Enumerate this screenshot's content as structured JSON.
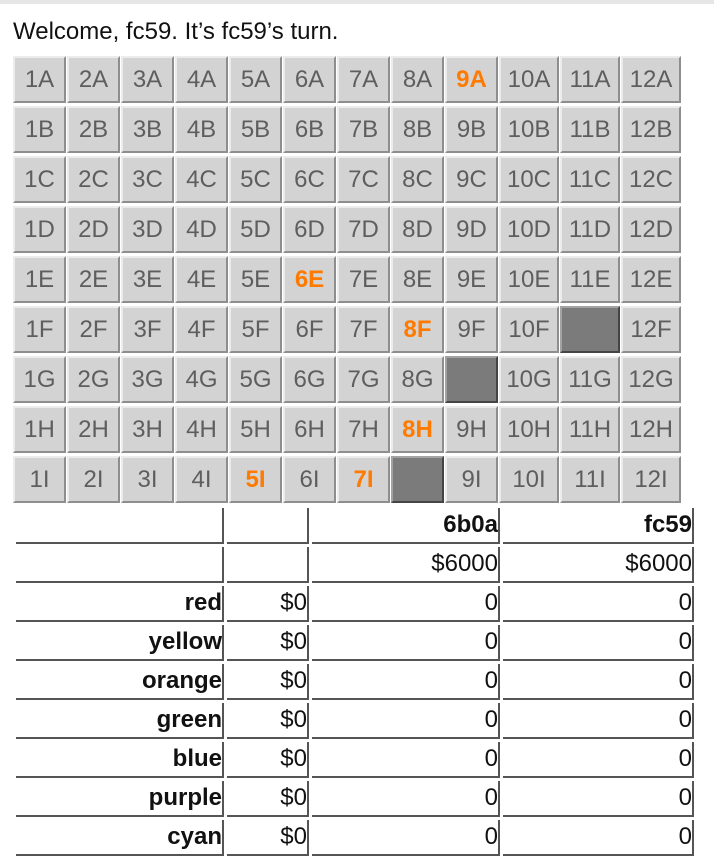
{
  "welcome": "Welcome, fc59. It’s fc59’s turn.",
  "board": {
    "rows": [
      [
        "1A",
        "2A",
        "3A",
        "4A",
        "5A",
        "6A",
        "7A",
        "8A",
        "9A",
        "10A",
        "11A",
        "12A"
      ],
      [
        "1B",
        "2B",
        "3B",
        "4B",
        "5B",
        "6B",
        "7B",
        "8B",
        "9B",
        "10B",
        "11B",
        "12B"
      ],
      [
        "1C",
        "2C",
        "3C",
        "4C",
        "5C",
        "6C",
        "7C",
        "8C",
        "9C",
        "10C",
        "11C",
        "12C"
      ],
      [
        "1D",
        "2D",
        "3D",
        "4D",
        "5D",
        "6D",
        "7D",
        "8D",
        "9D",
        "10D",
        "11D",
        "12D"
      ],
      [
        "1E",
        "2E",
        "3E",
        "4E",
        "5E",
        "6E",
        "7E",
        "8E",
        "9E",
        "10E",
        "11E",
        "12E"
      ],
      [
        "1F",
        "2F",
        "3F",
        "4F",
        "5F",
        "6F",
        "7F",
        "8F",
        "9F",
        "10F",
        "",
        "12F"
      ],
      [
        "1G",
        "2G",
        "3G",
        "4G",
        "5G",
        "6G",
        "7G",
        "8G",
        "",
        "10G",
        "11G",
        "12G"
      ],
      [
        "1H",
        "2H",
        "3H",
        "4H",
        "5H",
        "6H",
        "7H",
        "8H",
        "9H",
        "10H",
        "11H",
        "12H"
      ],
      [
        "1I",
        "2I",
        "3I",
        "4I",
        "5I",
        "6I",
        "7I",
        "",
        "9I",
        "10I",
        "11I",
        "12I"
      ]
    ],
    "highlighted": [
      "9A",
      "6E",
      "8F",
      "8H",
      "5I",
      "7I"
    ],
    "highlight_color": "#ff7a00",
    "filled_color": "#7b7b7b"
  },
  "stats": {
    "players": [
      "6b0a",
      "fc59"
    ],
    "cash": [
      "$6000",
      "$6000"
    ],
    "chains": [
      {
        "name": "red",
        "price": "$0",
        "holdings": [
          "0",
          "0"
        ]
      },
      {
        "name": "yellow",
        "price": "$0",
        "holdings": [
          "0",
          "0"
        ]
      },
      {
        "name": "orange",
        "price": "$0",
        "holdings": [
          "0",
          "0"
        ]
      },
      {
        "name": "green",
        "price": "$0",
        "holdings": [
          "0",
          "0"
        ]
      },
      {
        "name": "blue",
        "price": "$0",
        "holdings": [
          "0",
          "0"
        ]
      },
      {
        "name": "purple",
        "price": "$0",
        "holdings": [
          "0",
          "0"
        ]
      },
      {
        "name": "cyan",
        "price": "$0",
        "holdings": [
          "0",
          "0"
        ]
      }
    ]
  }
}
